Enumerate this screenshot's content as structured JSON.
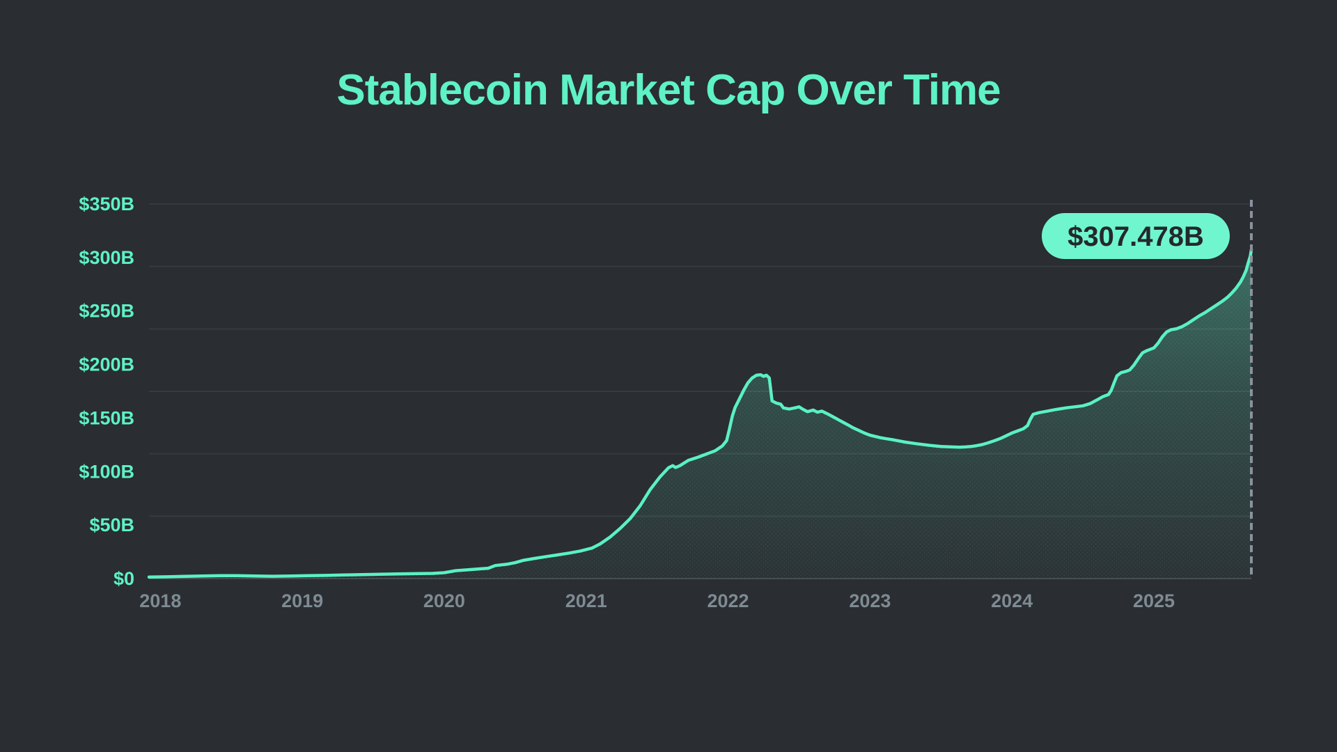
{
  "page": {
    "background": "#2A2D32"
  },
  "header": {
    "title": "Stablecoin Market Cap Over Time"
  },
  "chart_data": {
    "type": "area",
    "title": "Stablecoin Market Cap Over Time",
    "xlabel": "",
    "ylabel": "",
    "x_unit": "year (decimal)",
    "y_unit": "USD billions",
    "xlim": [
      2017.92,
      2025.687
    ],
    "ylim": [
      0,
      350
    ],
    "grid": "horizontal only, 7 faint lines, legend none",
    "x_ticks": [
      {
        "label": "2018",
        "year": 2018
      },
      {
        "label": "2019",
        "year": 2019
      },
      {
        "label": "2020",
        "year": 2020
      },
      {
        "label": "2021",
        "year": 2021
      },
      {
        "label": "2022",
        "year": 2022
      },
      {
        "label": "2023",
        "year": 2023
      },
      {
        "label": "2024",
        "year": 2024
      },
      {
        "label": "2025",
        "year": 2025
      }
    ],
    "y_ticks": [
      {
        "label": "$350B",
        "value": 350
      },
      {
        "label": "$300B",
        "value": 300
      },
      {
        "label": "$250B",
        "value": 250
      },
      {
        "label": "$200B",
        "value": 200
      },
      {
        "label": "$150B",
        "value": 150
      },
      {
        "label": "$100B",
        "value": 100
      },
      {
        "label": "$50B",
        "value": 50
      },
      {
        "label": "$0",
        "value": 0
      }
    ],
    "cursor": {
      "x": 2025.687,
      "value": 307.478,
      "label": "$307.478B"
    },
    "series": [
      {
        "name": "Stablecoin Market Cap",
        "points": [
          [
            2017.92,
            1.4
          ],
          [
            2018.04,
            1.7
          ],
          [
            2018.17,
            2.1
          ],
          [
            2018.29,
            2.4
          ],
          [
            2018.42,
            2.7
          ],
          [
            2018.54,
            2.8
          ],
          [
            2018.67,
            2.4
          ],
          [
            2018.79,
            2.2
          ],
          [
            2018.92,
            2.4
          ],
          [
            2019.04,
            2.7
          ],
          [
            2019.17,
            3.0
          ],
          [
            2019.29,
            3.4
          ],
          [
            2019.42,
            3.8
          ],
          [
            2019.54,
            4.1
          ],
          [
            2019.67,
            4.4
          ],
          [
            2019.79,
            4.6
          ],
          [
            2019.92,
            4.9
          ],
          [
            2020.0,
            5.5
          ],
          [
            2020.08,
            7.4
          ],
          [
            2020.17,
            8.3
          ],
          [
            2020.25,
            9.1
          ],
          [
            2020.31,
            9.7
          ],
          [
            2020.36,
            12.2
          ],
          [
            2020.44,
            13.4
          ],
          [
            2020.5,
            14.9
          ],
          [
            2020.56,
            17.2
          ],
          [
            2020.64,
            18.9
          ],
          [
            2020.72,
            20.6
          ],
          [
            2020.8,
            22.2
          ],
          [
            2020.88,
            23.9
          ],
          [
            2020.96,
            25.8
          ],
          [
            2021.04,
            28.5
          ],
          [
            2021.1,
            32.5
          ],
          [
            2021.17,
            39
          ],
          [
            2021.24,
            47
          ],
          [
            2021.31,
            56
          ],
          [
            2021.38,
            68
          ],
          [
            2021.45,
            83
          ],
          [
            2021.52,
            95
          ],
          [
            2021.58,
            103.5
          ],
          [
            2021.61,
            105.5
          ],
          [
            2021.63,
            103.8
          ],
          [
            2021.66,
            105.5
          ],
          [
            2021.72,
            110.5
          ],
          [
            2021.79,
            113.5
          ],
          [
            2021.85,
            116.5
          ],
          [
            2021.91,
            119.5
          ],
          [
            2021.96,
            124
          ],
          [
            2021.99,
            129
          ],
          [
            2022.01,
            140
          ],
          [
            2022.03,
            152
          ],
          [
            2022.05,
            160
          ],
          [
            2022.08,
            168
          ],
          [
            2022.11,
            176
          ],
          [
            2022.14,
            183
          ],
          [
            2022.17,
            187.5
          ],
          [
            2022.2,
            190
          ],
          [
            2022.23,
            190.5
          ],
          [
            2022.25,
            189
          ],
          [
            2022.27,
            190
          ],
          [
            2022.29,
            187.5
          ],
          [
            2022.3,
            177
          ],
          [
            2022.31,
            166
          ],
          [
            2022.34,
            164
          ],
          [
            2022.37,
            163
          ],
          [
            2022.39,
            159.5
          ],
          [
            2022.43,
            158.5
          ],
          [
            2022.47,
            159.5
          ],
          [
            2022.5,
            160.5
          ],
          [
            2022.53,
            158
          ],
          [
            2022.56,
            156
          ],
          [
            2022.6,
            157.5
          ],
          [
            2022.63,
            155.5
          ],
          [
            2022.66,
            156.5
          ],
          [
            2022.7,
            154
          ],
          [
            2022.75,
            150.5
          ],
          [
            2022.79,
            147.5
          ],
          [
            2022.84,
            144
          ],
          [
            2022.88,
            141
          ],
          [
            2022.92,
            138.5
          ],
          [
            2022.96,
            136
          ],
          [
            2023.0,
            134
          ],
          [
            2023.08,
            131.5
          ],
          [
            2023.17,
            129.5
          ],
          [
            2023.25,
            127.5
          ],
          [
            2023.33,
            126
          ],
          [
            2023.42,
            124.5
          ],
          [
            2023.5,
            123.5
          ],
          [
            2023.58,
            123
          ],
          [
            2023.63,
            122.8
          ],
          [
            2023.67,
            123
          ],
          [
            2023.71,
            123.4
          ],
          [
            2023.75,
            124.2
          ],
          [
            2023.79,
            125.2
          ],
          [
            2023.83,
            126.8
          ],
          [
            2023.88,
            129
          ],
          [
            2023.92,
            131
          ],
          [
            2023.96,
            133.5
          ],
          [
            2024.0,
            136
          ],
          [
            2024.04,
            138
          ],
          [
            2024.08,
            140
          ],
          [
            2024.11,
            143
          ],
          [
            2024.13,
            149
          ],
          [
            2024.15,
            153.5
          ],
          [
            2024.19,
            155
          ],
          [
            2024.25,
            156.5
          ],
          [
            2024.31,
            158
          ],
          [
            2024.38,
            159.5
          ],
          [
            2024.44,
            160.5
          ],
          [
            2024.5,
            161.5
          ],
          [
            2024.55,
            163.5
          ],
          [
            2024.6,
            167
          ],
          [
            2024.64,
            170
          ],
          [
            2024.68,
            172
          ],
          [
            2024.7,
            176
          ],
          [
            2024.72,
            183
          ],
          [
            2024.74,
            189.5
          ],
          [
            2024.77,
            192.5
          ],
          [
            2024.8,
            193.5
          ],
          [
            2024.83,
            195
          ],
          [
            2024.86,
            199.5
          ],
          [
            2024.89,
            205.5
          ],
          [
            2024.92,
            211
          ],
          [
            2024.95,
            213
          ],
          [
            2025.0,
            215.5
          ],
          [
            2025.03,
            220
          ],
          [
            2025.06,
            226
          ],
          [
            2025.09,
            230.5
          ],
          [
            2025.12,
            232.5
          ],
          [
            2025.16,
            233.5
          ],
          [
            2025.2,
            235.5
          ],
          [
            2025.24,
            238.5
          ],
          [
            2025.28,
            242
          ],
          [
            2025.32,
            245.5
          ],
          [
            2025.36,
            248.5
          ],
          [
            2025.4,
            252
          ],
          [
            2025.44,
            255.5
          ],
          [
            2025.48,
            259
          ],
          [
            2025.52,
            263
          ],
          [
            2025.55,
            267
          ],
          [
            2025.58,
            271.5
          ],
          [
            2025.61,
            277
          ],
          [
            2025.63,
            282
          ],
          [
            2025.65,
            288
          ],
          [
            2025.665,
            295
          ],
          [
            2025.68,
            301.5
          ],
          [
            2025.687,
            307.478
          ]
        ]
      }
    ],
    "colors": {
      "background": "#2A2D32",
      "accent_mint": "#5EF2C4",
      "line": "#5BF1C2",
      "fill_base": "#5EF2C4",
      "grid": "#363C41",
      "baseline": "#454B51",
      "x_label": "#7E8B92",
      "cursor_dash": "#8A929C",
      "badge_bg": "#70F6CE",
      "badge_text": "#24282D"
    }
  }
}
